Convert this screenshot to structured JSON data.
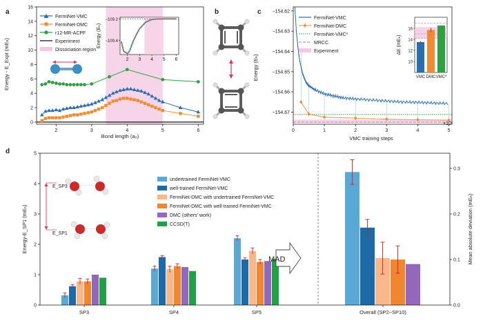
{
  "chart_data": [
    {
      "id": "a",
      "panel_label": "a",
      "type": "line",
      "xlabel": "Bond length (a₀)",
      "ylabel": "Energy - E_Expt (mEₕ)",
      "xlim": [
        1.45,
        6.15
      ],
      "ylim": [
        -0.3,
        16
      ],
      "xticks": [
        2,
        3,
        4,
        5,
        6
      ],
      "yticks": [
        0,
        2,
        4,
        6,
        8,
        10,
        12,
        14,
        16
      ],
      "dissociation_region": [
        3.4,
        5.0
      ],
      "dissociation_region_inner": [
        3.4,
        4.95
      ],
      "legend": [
        "FermiNet-VMC",
        "FermiNet-DMC",
        "r12-MR-ACPF",
        "Experiment",
        "Dissociation region"
      ],
      "colors": {
        "vmc": "#2a6db0",
        "dmc": "#f08b33",
        "acpf": "#2ea043",
        "region": "#f4c7e2"
      },
      "series": [
        {
          "name": "FermiNet-VMC",
          "marker": "triangle",
          "x": [
            1.6,
            1.7,
            1.8,
            1.9,
            2.0,
            2.1,
            2.2,
            2.3,
            2.4,
            2.5,
            2.6,
            2.7,
            2.8,
            2.9,
            3.0,
            3.1,
            3.2,
            3.3,
            3.4,
            3.5,
            3.6,
            3.7,
            3.8,
            3.9,
            4.0,
            4.1,
            4.2,
            4.3,
            4.4,
            4.5,
            4.6,
            4.7,
            4.8,
            4.9,
            5.0,
            5.5,
            6.0
          ],
          "y": [
            1.0,
            1.5,
            1.6,
            1.6,
            1.7,
            1.6,
            1.8,
            1.9,
            2.0,
            2.0,
            2.1,
            2.2,
            2.3,
            2.4,
            2.5,
            2.7,
            2.9,
            3.1,
            3.4,
            3.7,
            4.0,
            4.2,
            4.4,
            4.5,
            4.6,
            4.6,
            4.5,
            4.4,
            4.3,
            4.1,
            3.9,
            3.6,
            3.3,
            3.0,
            2.8,
            2.0,
            1.4
          ]
        },
        {
          "name": "FermiNet-DMC",
          "marker": "square",
          "x": [
            1.6,
            1.7,
            1.8,
            1.9,
            2.0,
            2.1,
            2.2,
            2.3,
            2.4,
            2.5,
            2.6,
            2.7,
            2.8,
            2.9,
            3.0,
            3.1,
            3.2,
            3.3,
            3.4,
            3.5,
            3.6,
            3.7,
            3.8,
            3.9,
            4.0,
            4.1,
            4.2,
            4.3,
            4.4,
            4.5,
            4.6,
            4.7,
            4.8,
            4.9,
            5.0,
            5.5,
            6.0
          ],
          "y": [
            0.2,
            0.5,
            0.6,
            0.6,
            0.6,
            0.6,
            0.7,
            0.8,
            0.9,
            1.0,
            1.0,
            1.1,
            1.2,
            1.3,
            1.4,
            1.6,
            1.8,
            2.0,
            2.3,
            2.6,
            2.9,
            3.0,
            3.2,
            3.3,
            3.3,
            3.2,
            3.1,
            3.0,
            2.8,
            2.6,
            2.4,
            2.2,
            2.0,
            1.8,
            1.6,
            1.2,
            0.8
          ]
        },
        {
          "name": "r12-MR-ACPF",
          "marker": "circle",
          "x": [
            1.6,
            1.7,
            1.8,
            1.9,
            2.0,
            2.1,
            2.2,
            2.3,
            2.4,
            2.5,
            2.6,
            2.7,
            2.8,
            3.0,
            3.5,
            4.0,
            5.0,
            6.0
          ],
          "y": [
            5.2,
            5.3,
            5.6,
            5.5,
            5.4,
            5.3,
            5.3,
            5.2,
            5.2,
            5.2,
            5.2,
            5.2,
            5.2,
            5.3,
            6.3,
            7.3,
            5.9,
            5.6
          ]
        }
      ],
      "inset": {
        "ylabel": "Energy (Eₕ)",
        "xlim": [
          1.4,
          6.2
        ],
        "ylim": [
          -109.53,
          -109.185
        ],
        "xticks": [
          2,
          3,
          4,
          5,
          6
        ],
        "yticks": [
          -109.2,
          -109.4
        ],
        "ytick_labels": [
          "−109.2",
          "−109.4"
        ],
        "x": [
          1.5,
          1.7,
          2.0,
          2.1,
          2.2,
          2.3,
          2.5,
          2.8,
          3.0,
          3.5,
          4.0,
          4.5,
          5.0,
          5.5,
          6.0
        ],
        "y": [
          -109.41,
          -109.5,
          -109.52,
          -109.51,
          -109.49,
          -109.46,
          -109.4,
          -109.33,
          -109.29,
          -109.23,
          -109.205,
          -109.2,
          -109.2,
          -109.2,
          -109.2
        ]
      }
    },
    {
      "id": "b",
      "panel_label": "b",
      "type": "diagram"
    },
    {
      "id": "c",
      "panel_label": "c",
      "type": "line",
      "xlabel": "VMC training steps",
      "ylabel": "Energy (Eₕ)",
      "xlim": [
        0,
        5.1
      ],
      "ylim": [
        -154.676,
        -154.618
      ],
      "x_unit": "×10⁵",
      "xticks": [
        0,
        1,
        2,
        3,
        4,
        5
      ],
      "yticks": [
        -154.62,
        -154.63,
        -154.64,
        -154.65,
        -154.66,
        -154.67
      ],
      "ytick_labels": [
        "−154.62",
        "−154.63",
        "−154.64",
        "−154.65",
        "−154.66",
        "−154.67"
      ],
      "legend": [
        "FermiNet-VMC",
        "FermiNet-DMC",
        "FermiNet-VMC*",
        "MRCC",
        "Experiment"
      ],
      "vmc_curve": {
        "x": [
          0.05,
          0.1,
          0.15,
          0.2,
          0.3,
          0.4,
          0.5,
          0.7,
          1.0,
          1.3,
          1.6,
          2.0,
          2.5,
          3.0,
          3.5,
          4.0,
          4.5,
          5.0
        ],
        "y": [
          -154.618,
          -154.63,
          -154.638,
          -154.644,
          -154.651,
          -154.655,
          -154.657,
          -154.659,
          -154.661,
          -154.662,
          -154.663,
          -154.6635,
          -154.664,
          -154.6645,
          -154.665,
          -154.6652,
          -154.6655,
          -154.6658
        ]
      },
      "dmc_points": {
        "x": [
          0.25,
          0.5,
          1.0,
          2.0,
          3.0,
          4.0,
          5.0
        ],
        "y": [
          -154.665,
          -154.671,
          -154.6725,
          -154.673,
          -154.6735,
          -154.6738,
          -154.674
        ]
      },
      "vmc_star": -154.6712,
      "mrcc": -154.675,
      "experiment": -154.6745,
      "inset": {
        "ylabel": "ΔE (mEₕ)",
        "categories": [
          "VMC",
          "DMC",
          "VMC*"
        ],
        "values": [
          13.5,
          15.7,
          16.5
        ],
        "errors": [
          0.2,
          0.4,
          0
        ],
        "ylim": [
          8,
          18
        ],
        "yticks": [
          10,
          12,
          14,
          16
        ],
        "colors": [
          "#2a6db0",
          "#f08b33",
          "#2ea043"
        ],
        "mrcc_lines": [
          16.9,
          15.0,
          14.2
        ],
        "experiment_band": [
          14.2,
          16.2
        ]
      }
    },
    {
      "id": "d",
      "panel_label": "d",
      "type": "bar",
      "ylabel_left": "Energy-E_SP1 (mEₕ)",
      "ylabel_right": "Mean absolute deviation (mEₕ)",
      "categories": [
        "SP3",
        "SP4",
        "SP5"
      ],
      "extra_category": "Overall (SP2~SP10)",
      "mad_label": "MAD",
      "e_labels": [
        "E_SP3",
        "E_SP1"
      ],
      "ylim_left": [
        0,
        5
      ],
      "yticks_left": [
        0,
        1,
        2,
        3,
        4,
        5
      ],
      "ylim_right": [
        0,
        0.3333
      ],
      "yticks_right": [
        0.0,
        0.1,
        0.2,
        0.3
      ],
      "ytick_right_labels": [
        "0.0",
        "0.1",
        "0.2",
        "0.3"
      ],
      "series": [
        {
          "name": "undertrained FermiNet-VMC",
          "color": "#5aa8d6",
          "values": [
            0.32,
            1.2,
            2.2
          ],
          "errors": [
            0.08,
            0.08,
            0.08
          ],
          "mad": 0.292,
          "mad_err": 0.027
        },
        {
          "name": "well-trained FermiNet-VMC",
          "color": "#1c6aa8",
          "values": [
            0.62,
            1.58,
            1.5
          ],
          "errors": [
            0.05,
            0.05,
            0.05
          ],
          "mad": 0.17,
          "mad_err": 0.018
        },
        {
          "name": "FermiNet-DMC with undertrained FermiNet-VMC",
          "color": "#f9b78a",
          "values": [
            0.78,
            1.18,
            1.78
          ],
          "errors": [
            0.1,
            0.1,
            0.1
          ],
          "mad": 0.103,
          "mad_err": 0.035
        },
        {
          "name": "FermiNet-DMC with well-trained FermiNet-VMC",
          "color": "#ef8631",
          "values": [
            0.78,
            1.28,
            1.42
          ],
          "errors": [
            0.08,
            0.08,
            0.08
          ],
          "mad": 0.1,
          "mad_err": 0.03
        },
        {
          "name": "DMC (others' work)",
          "color": "#9467bd",
          "values": [
            1.0,
            1.25,
            1.45
          ],
          "errors": [
            0,
            0,
            0
          ],
          "mad": 0.09,
          "mad_err": 0
        },
        {
          "name": "CCSD(T)",
          "color": "#22a045",
          "values": [
            0.9,
            1.12,
            1.52
          ],
          "errors": [
            0,
            0,
            0
          ],
          "mad": null,
          "mad_err": null
        }
      ]
    }
  ]
}
